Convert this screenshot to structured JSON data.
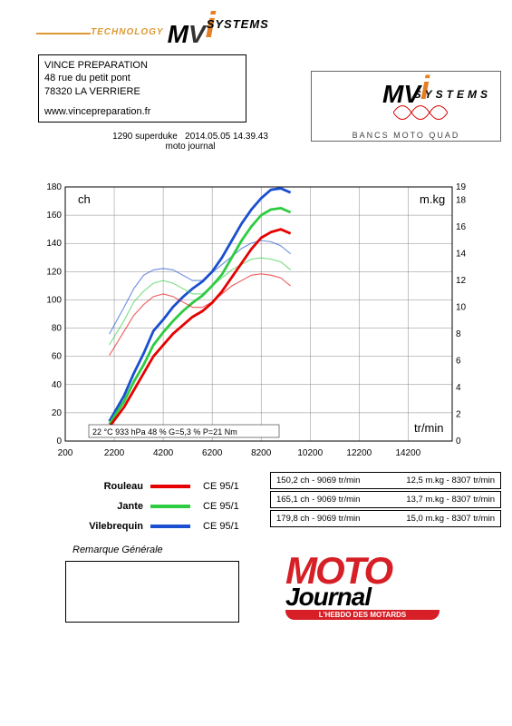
{
  "top_logo": {
    "tech": "TECHNOLOGY",
    "systems": "SYSTEMS"
  },
  "address": {
    "line1": "VINCE PREPARATION",
    "line2": "48 rue du petit pont",
    "line3": "78320 LA VERRIERE",
    "url": "www.vincepreparation.fr"
  },
  "meta": {
    "model": "1290 superduke",
    "datetime": "2014.05.05 14.39.43",
    "mag": "moto journal"
  },
  "banner_tag": "BANCS MOTO QUAD",
  "chart": {
    "ylabel_l": "ch",
    "ylabel_r": "m.kg",
    "xlabel": "tr/min",
    "conditions": "22 °C   933 hPa   48 %   G=5,3 %   P=21 Nm",
    "xlim": [
      200,
      16000
    ],
    "xtick_step": 2000,
    "ylim_l": [
      0,
      180
    ],
    "ytick_l_step": 20,
    "ylim_r": [
      0,
      19
    ],
    "yticks_r": [
      0,
      2,
      4,
      6,
      8,
      10,
      12,
      14,
      16,
      18,
      19
    ],
    "grid_color": "#888",
    "series": [
      {
        "name": "Vilebrequin",
        "color": "#1a4fd0",
        "width": 2.8,
        "power": [
          [
            2000,
            14
          ],
          [
            2600,
            32
          ],
          [
            3000,
            48
          ],
          [
            3400,
            62
          ],
          [
            3800,
            78
          ],
          [
            4200,
            86
          ],
          [
            4600,
            95
          ],
          [
            5000,
            102
          ],
          [
            5400,
            108
          ],
          [
            5800,
            113
          ],
          [
            6200,
            120
          ],
          [
            6600,
            130
          ],
          [
            7000,
            142
          ],
          [
            7400,
            154
          ],
          [
            7800,
            164
          ],
          [
            8200,
            172
          ],
          [
            8600,
            178
          ],
          [
            9000,
            179
          ],
          [
            9400,
            176
          ]
        ],
        "torque": [
          [
            2000,
            8.0
          ],
          [
            2600,
            10.0
          ],
          [
            3000,
            11.4
          ],
          [
            3400,
            12.4
          ],
          [
            3800,
            12.8
          ],
          [
            4200,
            12.9
          ],
          [
            4600,
            12.8
          ],
          [
            5000,
            12.4
          ],
          [
            5400,
            12.0
          ],
          [
            5800,
            12.0
          ],
          [
            6200,
            12.6
          ],
          [
            6600,
            13.2
          ],
          [
            7000,
            13.8
          ],
          [
            7400,
            14.4
          ],
          [
            7800,
            14.8
          ],
          [
            8200,
            15.0
          ],
          [
            8600,
            14.9
          ],
          [
            9000,
            14.6
          ],
          [
            9400,
            14.0
          ]
        ]
      },
      {
        "name": "Jante",
        "color": "#2ecc40",
        "width": 2.8,
        "power": [
          [
            2000,
            12
          ],
          [
            2600,
            28
          ],
          [
            3000,
            42
          ],
          [
            3400,
            54
          ],
          [
            3800,
            68
          ],
          [
            4200,
            77
          ],
          [
            4600,
            85
          ],
          [
            5000,
            92
          ],
          [
            5400,
            98
          ],
          [
            5800,
            103
          ],
          [
            6200,
            110
          ],
          [
            6600,
            118
          ],
          [
            7000,
            130
          ],
          [
            7400,
            142
          ],
          [
            7800,
            152
          ],
          [
            8200,
            160
          ],
          [
            8600,
            164
          ],
          [
            9000,
            165
          ],
          [
            9400,
            162
          ]
        ],
        "torque": [
          [
            2000,
            7.2
          ],
          [
            2600,
            9.0
          ],
          [
            3000,
            10.4
          ],
          [
            3400,
            11.2
          ],
          [
            3800,
            11.8
          ],
          [
            4200,
            12.0
          ],
          [
            4600,
            11.8
          ],
          [
            5000,
            11.4
          ],
          [
            5400,
            11.0
          ],
          [
            5800,
            11.0
          ],
          [
            6200,
            11.6
          ],
          [
            6600,
            12.2
          ],
          [
            7000,
            12.8
          ],
          [
            7400,
            13.2
          ],
          [
            7800,
            13.6
          ],
          [
            8200,
            13.7
          ],
          [
            8600,
            13.6
          ],
          [
            9000,
            13.4
          ],
          [
            9400,
            12.8
          ]
        ]
      },
      {
        "name": "Rouleau",
        "color": "#e60000",
        "width": 2.8,
        "power": [
          [
            2000,
            10
          ],
          [
            2600,
            24
          ],
          [
            3000,
            36
          ],
          [
            3400,
            48
          ],
          [
            3800,
            60
          ],
          [
            4200,
            68
          ],
          [
            4600,
            76
          ],
          [
            5000,
            82
          ],
          [
            5400,
            88
          ],
          [
            5800,
            92
          ],
          [
            6200,
            98
          ],
          [
            6600,
            106
          ],
          [
            7000,
            116
          ],
          [
            7400,
            126
          ],
          [
            7800,
            136
          ],
          [
            8200,
            144
          ],
          [
            8600,
            148
          ],
          [
            9000,
            150
          ],
          [
            9400,
            147
          ]
        ],
        "torque": [
          [
            2000,
            6.4
          ],
          [
            2600,
            8.2
          ],
          [
            3000,
            9.4
          ],
          [
            3400,
            10.2
          ],
          [
            3800,
            10.8
          ],
          [
            4200,
            11.0
          ],
          [
            4600,
            10.8
          ],
          [
            5000,
            10.4
          ],
          [
            5400,
            10.0
          ],
          [
            5800,
            10.0
          ],
          [
            6200,
            10.4
          ],
          [
            6600,
            11.0
          ],
          [
            7000,
            11.6
          ],
          [
            7400,
            12.0
          ],
          [
            7800,
            12.4
          ],
          [
            8200,
            12.5
          ],
          [
            8600,
            12.4
          ],
          [
            9000,
            12.2
          ],
          [
            9400,
            11.6
          ]
        ]
      }
    ]
  },
  "legend": {
    "ce": "CE 95/1",
    "items": [
      {
        "label": "Rouleau",
        "color": "#e60000"
      },
      {
        "label": "Jante",
        "color": "#2ecc40"
      },
      {
        "label": "Vilebrequin",
        "color": "#1a4fd0"
      }
    ]
  },
  "results": [
    {
      "ch": "150,2 ch - 9069 tr/min",
      "kg": "12,5 m.kg - 8307 tr/min"
    },
    {
      "ch": "165,1 ch - 9069 tr/min",
      "kg": "13,7 m.kg - 8307 tr/min"
    },
    {
      "ch": "179,8 ch - 9069 tr/min",
      "kg": "15,0 m.kg - 8307 tr/min"
    }
  ],
  "remark": "Remarque Générale",
  "moto": {
    "top": "MOTO",
    "mid": "Journal",
    "tag": "L'HEBDO DES MOTARDS"
  }
}
